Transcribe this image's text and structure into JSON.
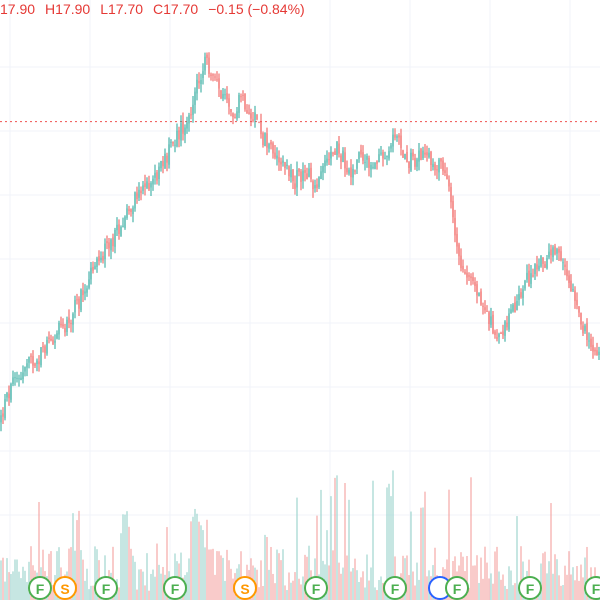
{
  "ohlc_legend": {
    "open": "17.90",
    "high": "H17.90",
    "low": "L17.70",
    "close": "C17.70",
    "change": "−0.15 (−0.84%)",
    "color": "#e53935"
  },
  "colors": {
    "up": "#26a69a",
    "down": "#ef5350",
    "up_volume": "#9fd6cf",
    "down_volume": "#f5a8a6",
    "grid": "#f0f3fa",
    "price_line": "#ef5350",
    "marker_green": "#4caf50",
    "marker_orange": "#ff9800",
    "marker_blue": "#2962ff"
  },
  "chart_data": {
    "type": "candlestick",
    "title": "",
    "grid": true,
    "price_line": 25.3,
    "y_range": [
      17.5,
      27.0
    ],
    "volume_range": [
      0,
      100
    ],
    "close_waypoints": [
      [
        0,
        19.2
      ],
      [
        5,
        19.55
      ],
      [
        12,
        19.9
      ],
      [
        20,
        20.15
      ],
      [
        30,
        20.4
      ],
      [
        40,
        20.55
      ],
      [
        50,
        20.9
      ],
      [
        60,
        21.05
      ],
      [
        70,
        21.3
      ],
      [
        80,
        21.7
      ],
      [
        90,
        22.2
      ],
      [
        100,
        22.5
      ],
      [
        110,
        22.8
      ],
      [
        120,
        23.2
      ],
      [
        130,
        23.6
      ],
      [
        140,
        23.8
      ],
      [
        150,
        24.1
      ],
      [
        160,
        24.3
      ],
      [
        170,
        24.75
      ],
      [
        180,
        25.1
      ],
      [
        190,
        25.5
      ],
      [
        200,
        26.2
      ],
      [
        206,
        26.5
      ],
      [
        212,
        26.2
      ],
      [
        218,
        26.0
      ],
      [
        225,
        25.7
      ],
      [
        232,
        25.3
      ],
      [
        240,
        25.9
      ],
      [
        248,
        25.6
      ],
      [
        256,
        25.4
      ],
      [
        262,
        25.0
      ],
      [
        270,
        24.8
      ],
      [
        278,
        24.6
      ],
      [
        286,
        24.4
      ],
      [
        295,
        24.1
      ],
      [
        305,
        24.3
      ],
      [
        315,
        24.0
      ],
      [
        325,
        24.5
      ],
      [
        335,
        24.8
      ],
      [
        345,
        24.5
      ],
      [
        352,
        24.2
      ],
      [
        360,
        24.6
      ],
      [
        370,
        24.4
      ],
      [
        380,
        24.5
      ],
      [
        388,
        24.6
      ],
      [
        395,
        25.0
      ],
      [
        402,
        24.7
      ],
      [
        410,
        24.5
      ],
      [
        420,
        24.6
      ],
      [
        430,
        24.5
      ],
      [
        440,
        24.4
      ],
      [
        448,
        24.0
      ],
      [
        455,
        23.0
      ],
      [
        462,
        22.4
      ],
      [
        470,
        22.1
      ],
      [
        478,
        21.8
      ],
      [
        486,
        21.4
      ],
      [
        495,
        21.0
      ],
      [
        505,
        21.1
      ],
      [
        515,
        21.5
      ],
      [
        525,
        22.0
      ],
      [
        535,
        22.3
      ],
      [
        545,
        22.5
      ],
      [
        555,
        22.6
      ],
      [
        565,
        22.3
      ],
      [
        575,
        21.8
      ],
      [
        585,
        21.0
      ],
      [
        593,
        20.6
      ],
      [
        600,
        20.5
      ]
    ],
    "events": [
      {
        "x": 40,
        "label": "F",
        "kind": "green"
      },
      {
        "x": 65,
        "label": "S",
        "kind": "orange"
      },
      {
        "x": 106,
        "label": "F",
        "kind": "green"
      },
      {
        "x": 175,
        "label": "F",
        "kind": "green"
      },
      {
        "x": 245,
        "label": "S",
        "kind": "orange"
      },
      {
        "x": 316,
        "label": "F",
        "kind": "green"
      },
      {
        "x": 395,
        "label": "F",
        "kind": "green"
      },
      {
        "x": 440,
        "label": "",
        "kind": "blue"
      },
      {
        "x": 457,
        "label": "F",
        "kind": "green"
      },
      {
        "x": 530,
        "label": "F",
        "kind": "green"
      },
      {
        "x": 596,
        "label": "F",
        "kind": "green"
      }
    ]
  }
}
